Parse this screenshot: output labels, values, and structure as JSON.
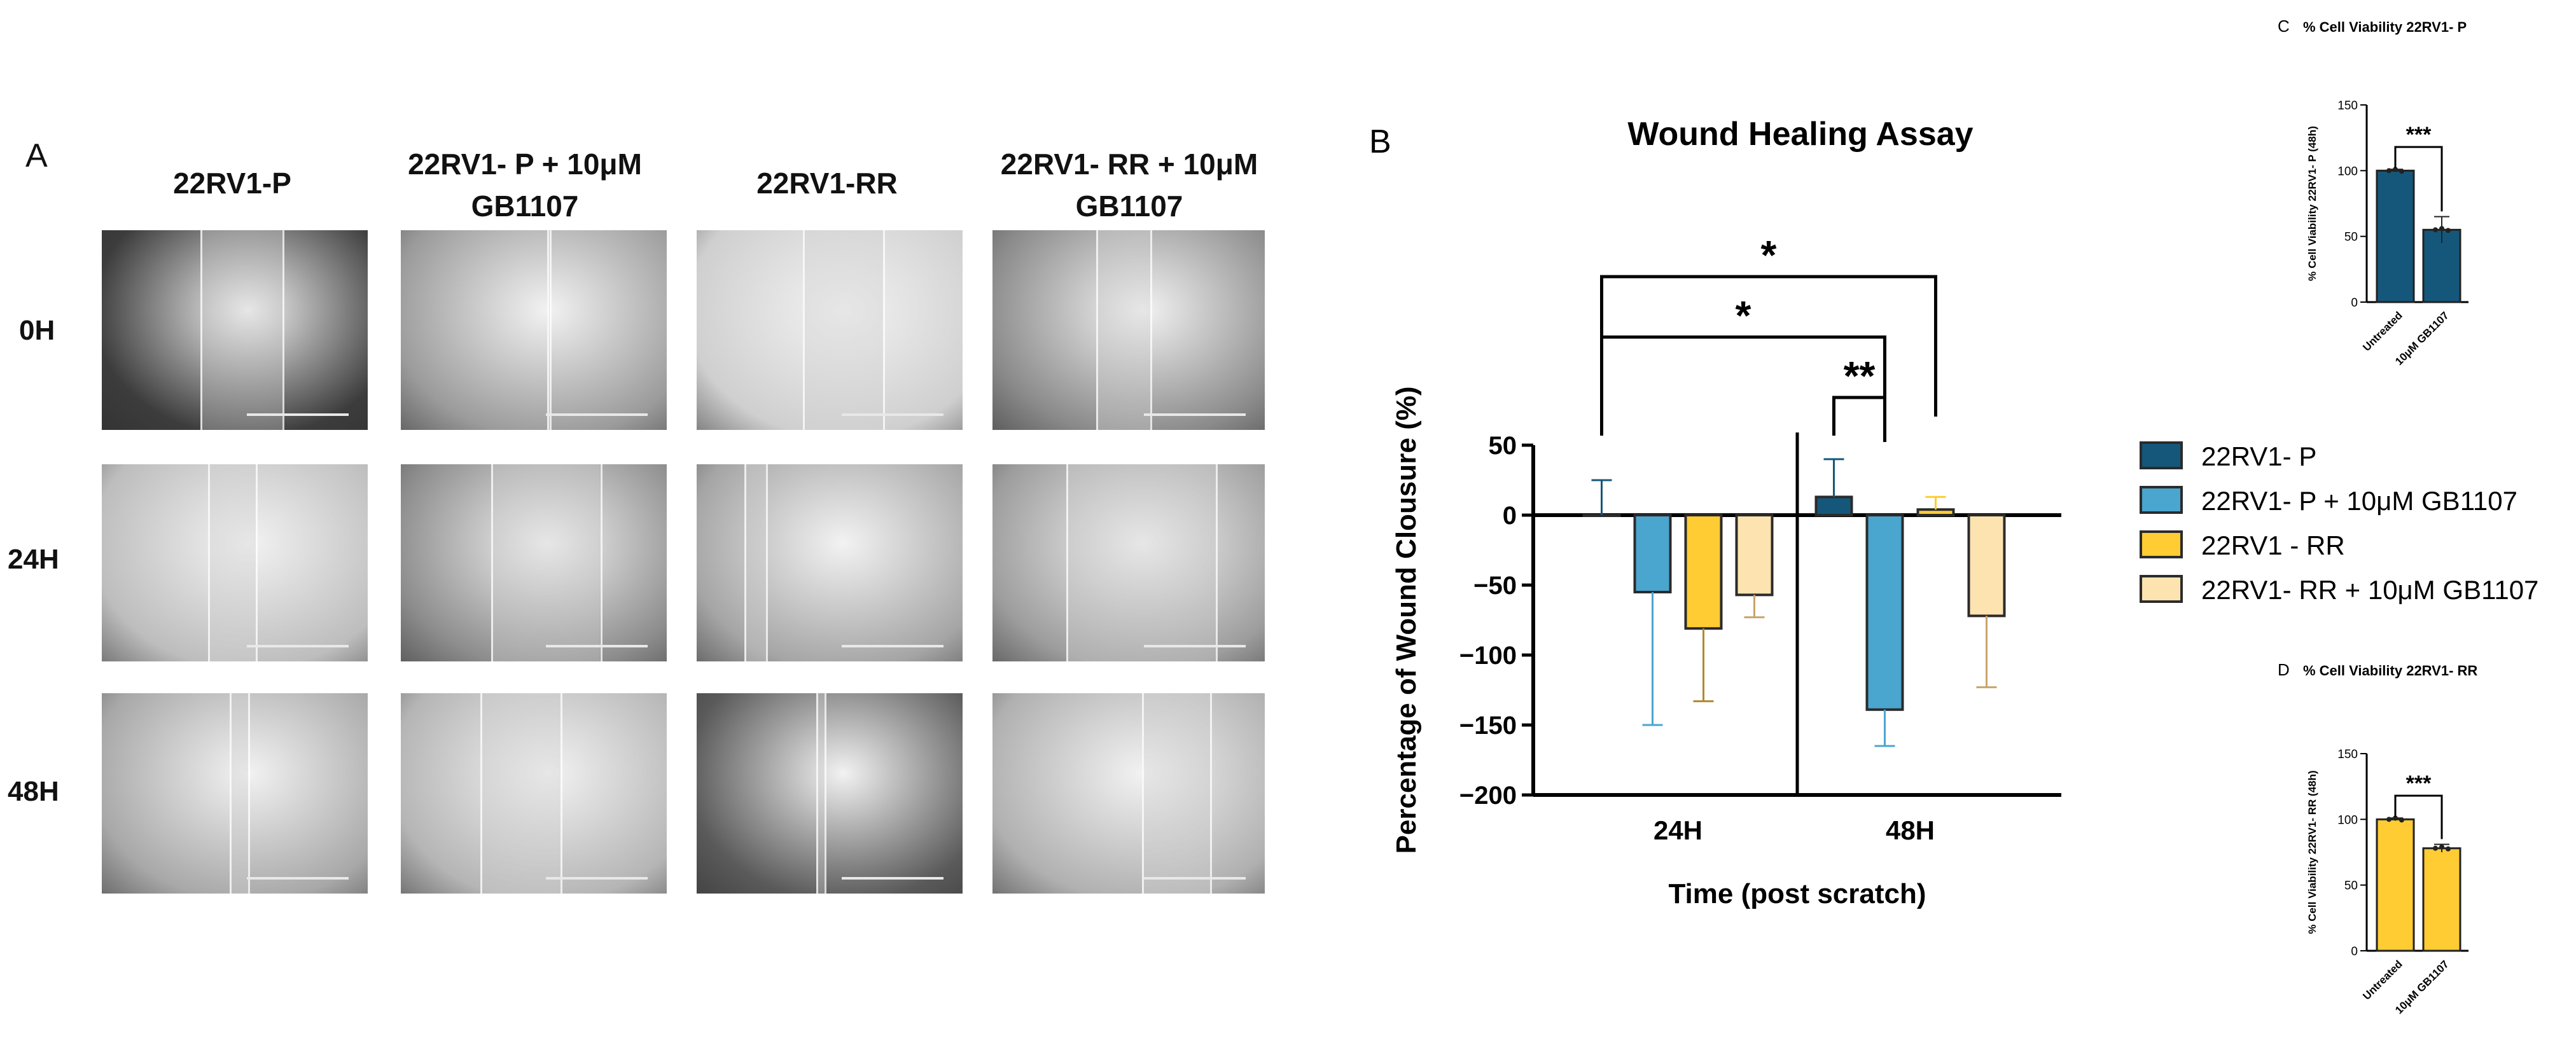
{
  "panel_a": {
    "letter": "A",
    "columns": [
      "22RV1-P",
      "22RV1- P + 10μM GB1107",
      "22RV1-RR",
      "22RV1- RR + 10μM GB1107"
    ],
    "rows": [
      "0H",
      "24H",
      "48H"
    ]
  },
  "chart_data": [
    {
      "id": "B",
      "panel_letter": "B",
      "type": "bar",
      "title": "Wound Healing Assay",
      "xlabel": "Time (post scratch)",
      "ylabel": "Percentage of Wound Clousure (%)",
      "ylim": [
        -200,
        50
      ],
      "yticks": [
        50,
        0,
        -50,
        -100,
        -150,
        -200
      ],
      "categories": [
        "24H",
        "48H"
      ],
      "series": [
        {
          "name": "22RV1- P",
          "color": "#15577a",
          "values": [
            0,
            13
          ],
          "err_up": [
            25,
            27
          ],
          "err_down": [
            0,
            0
          ]
        },
        {
          "name": "22RV1- P + 10μM GB1107",
          "color": "#4aa5cf",
          "values": [
            -55,
            -139
          ],
          "err_up": [
            0,
            0
          ],
          "err_down": [
            95,
            26
          ]
        },
        {
          "name": "22RV1 - RR",
          "color": "#ffcc33",
          "values": [
            -81,
            4
          ],
          "err_up": [
            0,
            9
          ],
          "err_down": [
            52,
            0
          ]
        },
        {
          "name": "22RV1- RR + 10μM GB1107",
          "color": "#fde3b0",
          "values": [
            -57,
            -72
          ],
          "err_up": [
            0,
            0
          ],
          "err_down": [
            16,
            51
          ]
        }
      ],
      "significance": [
        {
          "label": "*",
          "from": "24H: 22RV1- P",
          "to": "48H: 22RV1- P + 10μM GB1107"
        },
        {
          "label": "*",
          "from": "24H: 22RV1- P",
          "to": "48H: 22RV1 - RR"
        },
        {
          "label": "**",
          "from": "48H: 22RV1- P",
          "to": "48H: 22RV1- P + 10μM GB1107"
        }
      ],
      "legend_position": "right"
    },
    {
      "id": "C",
      "panel_letter": "C",
      "type": "bar",
      "title": "% Cell Viability 22RV1- P",
      "ylabel": "% Cell Viability 22RV1- P (48h)",
      "ylim": [
        0,
        150
      ],
      "yticks": [
        150,
        100,
        50,
        0
      ],
      "categories": [
        "Untreated",
        "10μM GB1107"
      ],
      "values": [
        100,
        55
      ],
      "errors": [
        1,
        10
      ],
      "color": "#15577a",
      "significance": "***"
    },
    {
      "id": "D",
      "panel_letter": "D",
      "type": "bar",
      "title": "% Cell Viability 22RV1- RR",
      "ylabel": "% Cell Viability 22RV1- RR (48h)",
      "ylim": [
        0,
        150
      ],
      "yticks": [
        150,
        100,
        50,
        0
      ],
      "categories": [
        "Untreated",
        "10μM GB1107"
      ],
      "values": [
        100,
        78
      ],
      "errors": [
        1,
        3
      ],
      "color": "#ffcc33",
      "significance": "***"
    }
  ]
}
